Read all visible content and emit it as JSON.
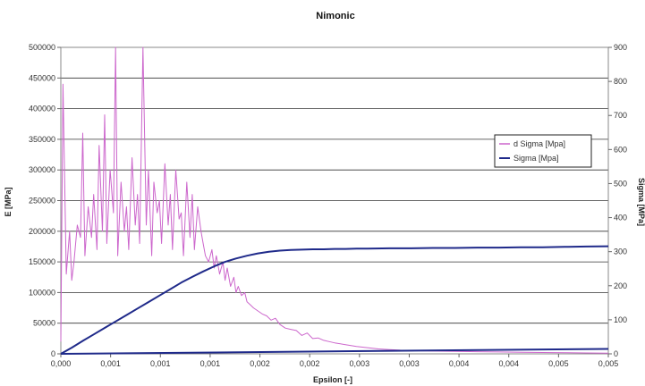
{
  "chart_data": {
    "type": "line",
    "title": "Nimonic",
    "xlabel": "Epsilon [-]",
    "ylabel": "E [MPa]",
    "y2label": "Sigma [MPa]",
    "xlim": [
      0,
      0.005
    ],
    "ylim": [
      0,
      500000
    ],
    "y2lim": [
      0,
      900
    ],
    "x_tick_labels": [
      "0,000",
      "0,001",
      "0,001",
      "0,001",
      "0,002",
      "0,002",
      "0,003",
      "0,003",
      "0,004",
      "0,004",
      "0,005",
      "0,005"
    ],
    "y_tick_labels": [
      "0",
      "50000",
      "100000",
      "150000",
      "200000",
      "250000",
      "300000",
      "350000",
      "400000",
      "450000",
      "500000"
    ],
    "y2_tick_labels": [
      "0",
      "100",
      "200",
      "300",
      "400",
      "500",
      "600",
      "700",
      "800",
      "900"
    ],
    "grid": true,
    "legend_position": "right",
    "series": [
      {
        "name": "d  Sigma [Mpa]",
        "color": "#cc66cc",
        "axis": "left",
        "x": [
          0.0,
          2e-05,
          5e-05,
          8e-05,
          0.0001,
          0.00012,
          0.00015,
          0.00018,
          0.0002,
          0.00022,
          0.00025,
          0.00028,
          0.0003,
          0.00033,
          0.00035,
          0.00038,
          0.0004,
          0.00042,
          0.00045,
          0.00048,
          0.0005,
          0.00052,
          0.00055,
          0.00058,
          0.0006,
          0.00062,
          0.00065,
          0.00068,
          0.0007,
          0.00072,
          0.00075,
          0.00078,
          0.0008,
          0.00083,
          0.00085,
          0.00088,
          0.0009,
          0.00092,
          0.00095,
          0.00098,
          0.001,
          0.00102,
          0.00105,
          0.00108,
          0.0011,
          0.00112,
          0.00115,
          0.00118,
          0.0012,
          0.00122,
          0.00125,
          0.00128,
          0.0013,
          0.00132,
          0.00135,
          0.00138,
          0.0014,
          0.00142,
          0.00145,
          0.00148,
          0.0015,
          0.00152,
          0.00155,
          0.00158,
          0.0016,
          0.00162,
          0.00165,
          0.00168,
          0.0017,
          0.00173,
          0.00176,
          0.0018,
          0.00184,
          0.00188,
          0.00192,
          0.00196,
          0.002,
          0.00205,
          0.0021,
          0.00215,
          0.0022,
          0.00225,
          0.0023,
          0.00235,
          0.0024,
          0.00245,
          0.0025,
          0.0026,
          0.0027,
          0.0028,
          0.0029,
          0.003,
          0.0031,
          0.0032,
          0.0033,
          0.0034,
          0.0036,
          0.0038,
          0.004,
          0.0042,
          0.0045,
          0.0048,
          0.005
        ],
        "values": [
          20000,
          440000,
          130000,
          200000,
          120000,
          150000,
          210000,
          190000,
          360000,
          160000,
          240000,
          190000,
          260000,
          170000,
          340000,
          200000,
          390000,
          180000,
          300000,
          230000,
          500000,
          160000,
          280000,
          200000,
          240000,
          170000,
          320000,
          210000,
          260000,
          180000,
          500000,
          210000,
          300000,
          160000,
          280000,
          230000,
          250000,
          180000,
          310000,
          210000,
          260000,
          170000,
          300000,
          220000,
          230000,
          160000,
          280000,
          190000,
          260000,
          170000,
          240000,
          200000,
          180000,
          160000,
          150000,
          170000,
          140000,
          160000,
          130000,
          150000,
          120000,
          140000,
          110000,
          125000,
          100000,
          110000,
          95000,
          100000,
          85000,
          80000,
          75000,
          70000,
          65000,
          62000,
          55000,
          58000,
          48000,
          42000,
          40000,
          38000,
          30000,
          34000,
          25000,
          26000,
          22000,
          20000,
          18000,
          15000,
          12000,
          10000,
          8000,
          7000,
          6000,
          5500,
          5000,
          4500,
          4000,
          3500,
          3000,
          2500,
          2000,
          1500,
          1000
        ]
      },
      {
        "name": "Sigma [Mpa]",
        "color": "#1f2a8a",
        "axis": "right",
        "x": [
          0.0,
          0.0001,
          0.0002,
          0.0003,
          0.0004,
          0.0005,
          0.0006,
          0.0007,
          0.0008,
          0.0009,
          0.001,
          0.0011,
          0.0012,
          0.0013,
          0.0014,
          0.0015,
          0.0016,
          0.0017,
          0.0018,
          0.0019,
          0.002,
          0.0021,
          0.0022,
          0.0023,
          0.0024,
          0.0025,
          0.0026,
          0.0027,
          0.0028,
          0.003,
          0.0032,
          0.0034,
          0.0036,
          0.0038,
          0.004,
          0.0042,
          0.0044,
          0.0046,
          0.0048,
          0.005
        ],
        "values": [
          0,
          18,
          38,
          57,
          76,
          95,
          114,
          133,
          152,
          171,
          190,
          209,
          226,
          242,
          257,
          270,
          280,
          288,
          295,
          300,
          303,
          305,
          306,
          307,
          307,
          308,
          308,
          309,
          309,
          310,
          310,
          311,
          311,
          312,
          312,
          313,
          313,
          314,
          315,
          316
        ]
      },
      {
        "name": "",
        "color": "#1f2a8a",
        "axis": "left",
        "x": [
          0.0,
          0.005
        ],
        "values": [
          0,
          8000
        ]
      }
    ]
  }
}
